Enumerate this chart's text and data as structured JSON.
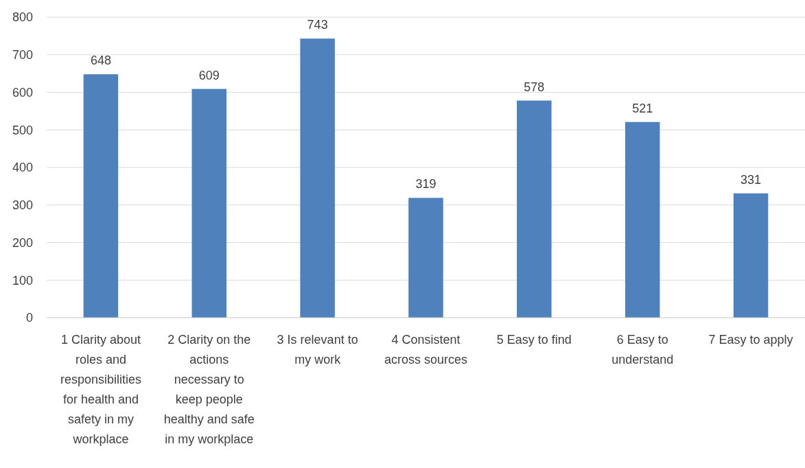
{
  "chart_data": {
    "type": "bar",
    "categories": [
      "1 Clarity about roles and responsibilities for health and safety in my workplace",
      "2 Clarity on the actions necessary to keep people healthy and safe in my workplace",
      "3 Is relevant to my work",
      "4 Consistent across sources",
      "5 Easy to find",
      "6 Easy to understand",
      "7 Easy to apply"
    ],
    "values": [
      648,
      609,
      743,
      319,
      578,
      521,
      331
    ],
    "color": "#4f81bd",
    "ylim": [
      0,
      800
    ],
    "yticks": [
      0,
      100,
      200,
      300,
      400,
      500,
      600,
      700,
      800
    ],
    "grid": "y",
    "data_labels": true
  }
}
